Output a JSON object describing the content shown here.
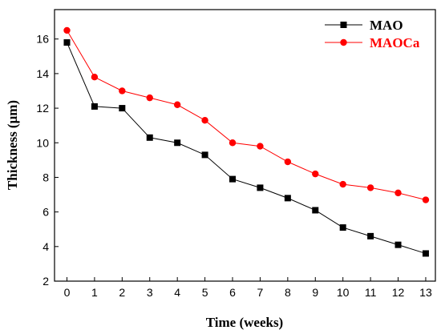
{
  "chart_data": {
    "type": "line",
    "title": "",
    "xlabel": "Time (weeks)",
    "ylabel": "Thickness (μm)",
    "x": [
      0,
      1,
      2,
      3,
      4,
      5,
      6,
      7,
      8,
      9,
      10,
      11,
      12,
      13
    ],
    "xlim": [
      -0.45,
      13.35
    ],
    "ylim": [
      2,
      17.7
    ],
    "xticks": [
      0,
      1,
      2,
      3,
      4,
      5,
      6,
      7,
      8,
      9,
      10,
      11,
      12,
      13
    ],
    "yticks": [
      2,
      4,
      6,
      8,
      10,
      12,
      14,
      16
    ],
    "grid": false,
    "legend_position": "top-right",
    "series": [
      {
        "name": "MAO",
        "color": "#000000",
        "marker": "square",
        "values": [
          15.8,
          12.1,
          12.0,
          10.3,
          10.0,
          9.3,
          7.9,
          7.4,
          6.8,
          6.1,
          5.1,
          4.6,
          4.1,
          3.6
        ]
      },
      {
        "name": "MAOCa",
        "color": "#ff0000",
        "marker": "circle",
        "values": [
          16.5,
          13.8,
          13.0,
          12.6,
          12.2,
          11.3,
          10.0,
          9.8,
          8.9,
          8.2,
          7.6,
          7.4,
          7.1,
          6.7
        ]
      }
    ]
  }
}
